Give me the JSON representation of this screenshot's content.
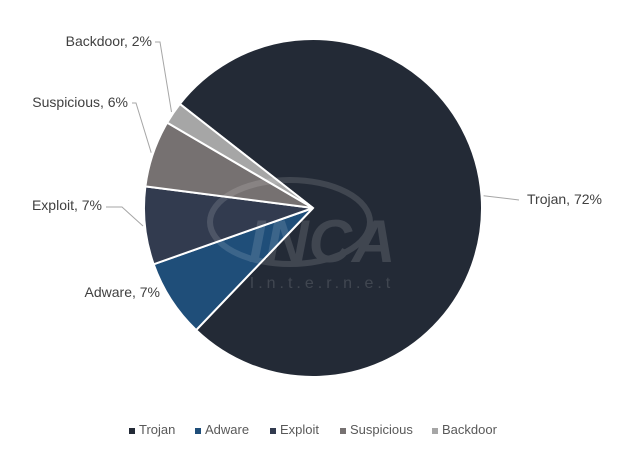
{
  "chart_data": {
    "type": "pie",
    "title": "",
    "slices": [
      {
        "name": "Trojan",
        "value": 72,
        "label": "Trojan, 72%",
        "color": "#232a36"
      },
      {
        "name": "Adware",
        "value": 7,
        "label": "Adware, 7%",
        "color": "#1f4e79"
      },
      {
        "name": "Exploit",
        "value": 7,
        "label": "Exploit, 7%",
        "color": "#323b4f"
      },
      {
        "name": "Suspicious",
        "value": 6,
        "label": "Suspicious, 6%",
        "color": "#767171"
      },
      {
        "name": "Backdoor",
        "value": 2,
        "label": "Backdoor, 2%",
        "color": "#a6a6a6"
      }
    ],
    "legend": {
      "placement": "bottom"
    }
  },
  "watermark": {
    "brand": "INCA",
    "subtitle": "I.n.t.e.r.n.e.t"
  }
}
